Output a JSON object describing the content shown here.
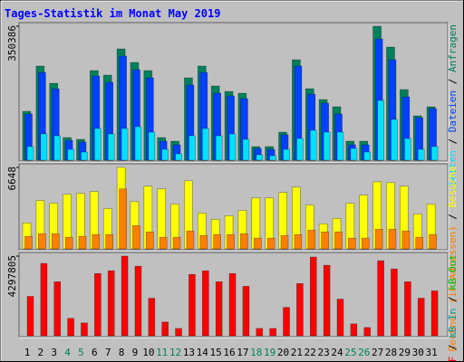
{
  "chart_data": [
    {
      "type": "bar",
      "title": "Tages-Statistik im Monat May 2019",
      "legend_separator": " / ",
      "ylim": [
        0,
        350386
      ],
      "yticks": [
        350386
      ],
      "series": [
        {
          "name": "Seiten",
          "color": "#00e0ff",
          "values": [
            35500,
            68700,
            63900,
            28400,
            21300,
            82900,
            68700,
            82900,
            87600,
            73400,
            28400,
            16600,
            63900,
            82900,
            63900,
            68700,
            54500,
            14200,
            11800,
            28400,
            56800,
            78100,
            73400,
            73400,
            30800,
            21300,
            156300,
            106500,
            56800,
            28400,
            35500
          ]
        },
        {
          "name": "Dateien",
          "color": "#0040ff",
          "values": [
            120700,
            229600,
            187000,
            52100,
            47400,
            220200,
            203600,
            272300,
            236800,
            215400,
            49700,
            40200,
            196500,
            229600,
            175200,
            168100,
            161000,
            30800,
            28400,
            66300,
            246200,
            172800,
            149200,
            120700,
            40200,
            40200,
            317200,
            262800,
            165700,
            111300,
            134900
          ]
        },
        {
          "name": "Anfragen",
          "color": "#00805c",
          "values": [
            127800,
            246200,
            201200,
            59200,
            54500,
            234400,
            222500,
            291200,
            255700,
            234400,
            59200,
            49700,
            215400,
            246200,
            194100,
            179900,
            175200,
            35500,
            35500,
            73400,
            262800,
            187000,
            158600,
            139700,
            49700,
            49700,
            350386,
            295900,
            184700,
            116000,
            139700
          ]
        }
      ]
    },
    {
      "type": "bar",
      "ylim": [
        0,
        6648
      ],
      "yticks": [
        6648
      ],
      "series": [
        {
          "name": "Rechner (IP-Adressen)",
          "color": "#ff8000",
          "values": [
            1023,
            1242,
            1242,
            950,
            1023,
            1169,
            1169,
            4894,
            1899,
            1388,
            950,
            950,
            1461,
            1096,
            1169,
            1169,
            1242,
            877,
            877,
            1096,
            1169,
            1534,
            1388,
            1388,
            877,
            877,
            1607,
            1607,
            1461,
            950,
            1169
          ]
        },
        {
          "name": "Besuche",
          "color": "#ffff00",
          "values": [
            2118,
            3945,
            3726,
            4456,
            4529,
            4675,
            3287,
            6648,
            3872,
            5114,
            4894,
            3653,
            5552,
            2922,
            2411,
            2703,
            3141,
            4164,
            4164,
            4602,
            5040,
            3580,
            2045,
            2484,
            3726,
            4383,
            5479,
            5406,
            5114,
            2849,
            3653
          ]
        }
      ]
    },
    {
      "type": "bar",
      "ylim": [
        0,
        4297805
      ],
      "yticks": [
        4297805
      ],
      "categories": [
        "1",
        "2",
        "3",
        "4",
        "5",
        "6",
        "7",
        "8",
        "9",
        "10",
        "11",
        "12",
        "13",
        "14",
        "15",
        "16",
        "17",
        "18",
        "19",
        "20",
        "21",
        "22",
        "23",
        "24",
        "25",
        "26",
        "27",
        "28",
        "29",
        "30",
        "31"
      ],
      "category_colors": [
        "#000000",
        "#000000",
        "#000000",
        "#00805c",
        "#00805c",
        "#000000",
        "#000000",
        "#000000",
        "#000000",
        "#000000",
        "#00805c",
        "#00805c",
        "#000000",
        "#000000",
        "#000000",
        "#000000",
        "#000000",
        "#00805c",
        "#00805c",
        "#000000",
        "#000000",
        "#000000",
        "#000000",
        "#000000",
        "#00805c",
        "#00805c",
        "#000000",
        "#000000",
        "#000000",
        "#000000",
        "#000000"
      ],
      "series": [
        {
          "name": "kB F",
          "color": "#ff0000",
          "values": [
            2124000,
            3903000,
            2915000,
            939000,
            692000,
            3359000,
            3507000,
            4297805,
            3754000,
            2025000,
            741000,
            395000,
            3310000,
            3507000,
            2915000,
            3359000,
            2668000,
            395000,
            395000,
            1531000,
            2816000,
            4248000,
            3804000,
            1976000,
            642000,
            445000,
            4051000,
            3606000,
            2915000,
            2025000,
            2421000
          ]
        },
        {
          "name": "kB In",
          "color": "#00a0a0",
          "values": [
            null,
            null,
            null,
            null,
            null,
            null,
            null,
            null,
            null,
            null,
            null,
            null,
            null,
            null,
            null,
            null,
            null,
            null,
            null,
            null,
            null,
            null,
            null,
            null,
            null,
            null,
            null,
            null,
            null,
            null,
            null
          ]
        },
        {
          "name": "kB Out",
          "color": "#00c000",
          "values": [
            null,
            null,
            null,
            null,
            null,
            null,
            null,
            null,
            null,
            null,
            null,
            null,
            null,
            null,
            null,
            null,
            null,
            null,
            null,
            null,
            null,
            null,
            null,
            null,
            null,
            null,
            null,
            null,
            null,
            null,
            null
          ]
        }
      ]
    }
  ]
}
